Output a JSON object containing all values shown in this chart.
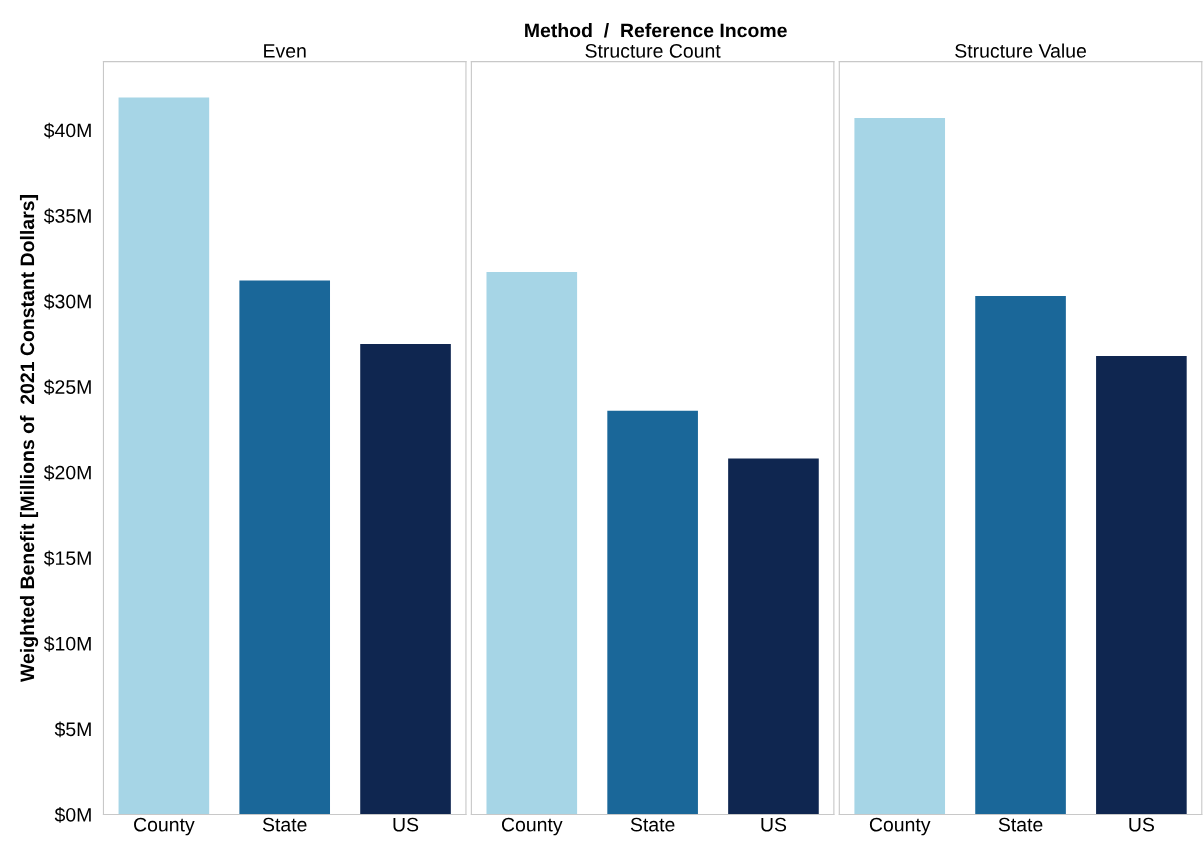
{
  "chart_data": [
    {
      "type": "bar",
      "title": "Even",
      "annotations": [
        "Method  /  Reference Income"
      ],
      "ylabel": "Weighted Benefit [Millions of  2021 Constant Dollars]",
      "categories": [
        "County",
        "State",
        "US"
      ],
      "values": [
        41.9,
        31.2,
        27.5
      ],
      "colors": [
        "#a6d5e6",
        "#1a6799",
        "#0f2650"
      ],
      "ylim": [
        0,
        44
      ],
      "yticks": [
        {
          "value": 0,
          "label": "$0M"
        },
        {
          "value": 5,
          "label": "$5M"
        },
        {
          "value": 10,
          "label": "$10M"
        },
        {
          "value": 15,
          "label": "$15M"
        },
        {
          "value": 20,
          "label": "$20M"
        },
        {
          "value": 25,
          "label": "$25M"
        },
        {
          "value": 30,
          "label": "$30M"
        },
        {
          "value": 35,
          "label": "$35M"
        },
        {
          "value": 40,
          "label": "$40M"
        }
      ]
    },
    {
      "type": "bar",
      "title": "Structure Count",
      "categories": [
        "County",
        "State",
        "US"
      ],
      "values": [
        31.7,
        23.6,
        20.8
      ],
      "colors": [
        "#a6d5e6",
        "#1a6799",
        "#0f2650"
      ],
      "ylim": [
        0,
        44
      ],
      "tick_labels": "x"
    },
    {
      "type": "bar",
      "title": "Structure Value",
      "categories": [
        "County",
        "State",
        "US"
      ],
      "values": [
        40.7,
        30.3,
        26.8
      ],
      "colors": [
        "#a6d5e6",
        "#1a6799",
        "#0f2650"
      ],
      "ylim": [
        0,
        44
      ],
      "tick_labels": "x"
    }
  ]
}
